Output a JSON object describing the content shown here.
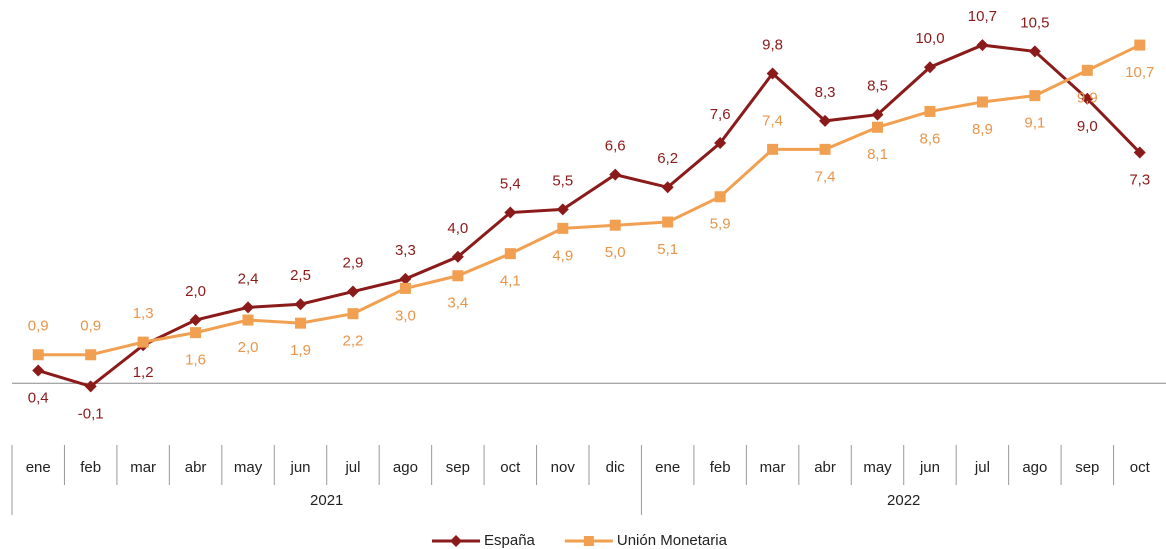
{
  "chart_data": {
    "type": "line",
    "category_groups": [
      {
        "name": "2021",
        "categories": [
          "ene",
          "feb",
          "mar",
          "abr",
          "may",
          "jun",
          "jul",
          "ago",
          "sep",
          "oct",
          "nov",
          "dic"
        ]
      },
      {
        "name": "2022",
        "categories": [
          "ene",
          "feb",
          "mar",
          "abr",
          "may",
          "jun",
          "jul",
          "ago",
          "sep",
          "oct"
        ]
      }
    ],
    "series": [
      {
        "name": "España",
        "color": "#8b1a1a",
        "values": [
          0.4,
          -0.1,
          1.2,
          2.0,
          2.4,
          2.5,
          2.9,
          3.3,
          4.0,
          5.4,
          5.5,
          6.6,
          6.2,
          7.6,
          9.8,
          8.3,
          8.5,
          10.0,
          10.7,
          10.5,
          9.0,
          7.3
        ],
        "value_labels": [
          "0,4",
          "-0,1",
          "1,2",
          "2,0",
          "2,4",
          "2,5",
          "2,9",
          "3,3",
          "4,0",
          "5,4",
          "5,5",
          "6,6",
          "6,2",
          "7,6",
          "9,8",
          "8,3",
          "8,5",
          "10,0",
          "10,7",
          "10,5",
          "9,0",
          "7,3"
        ]
      },
      {
        "name": "Unión Monetaria",
        "color": "#f0a050",
        "values": [
          0.9,
          0.9,
          1.3,
          1.6,
          2.0,
          1.9,
          2.2,
          3.0,
          3.4,
          4.1,
          4.9,
          5.0,
          5.1,
          5.9,
          7.4,
          7.4,
          8.1,
          8.6,
          8.9,
          9.1,
          9.9,
          10.7
        ],
        "value_labels": [
          "0,9",
          "0,9",
          "1,3",
          "1,6",
          "2,0",
          "1,9",
          "2,2",
          "3,0",
          "3,4",
          "4,1",
          "4,9",
          "5,0",
          "5,1",
          "5,9",
          "7,4",
          "7,4",
          "8,1",
          "8,6",
          "8,9",
          "9,1",
          "9,9",
          "10,7"
        ]
      }
    ],
    "ylim": [
      -0.5,
      12
    ]
  }
}
